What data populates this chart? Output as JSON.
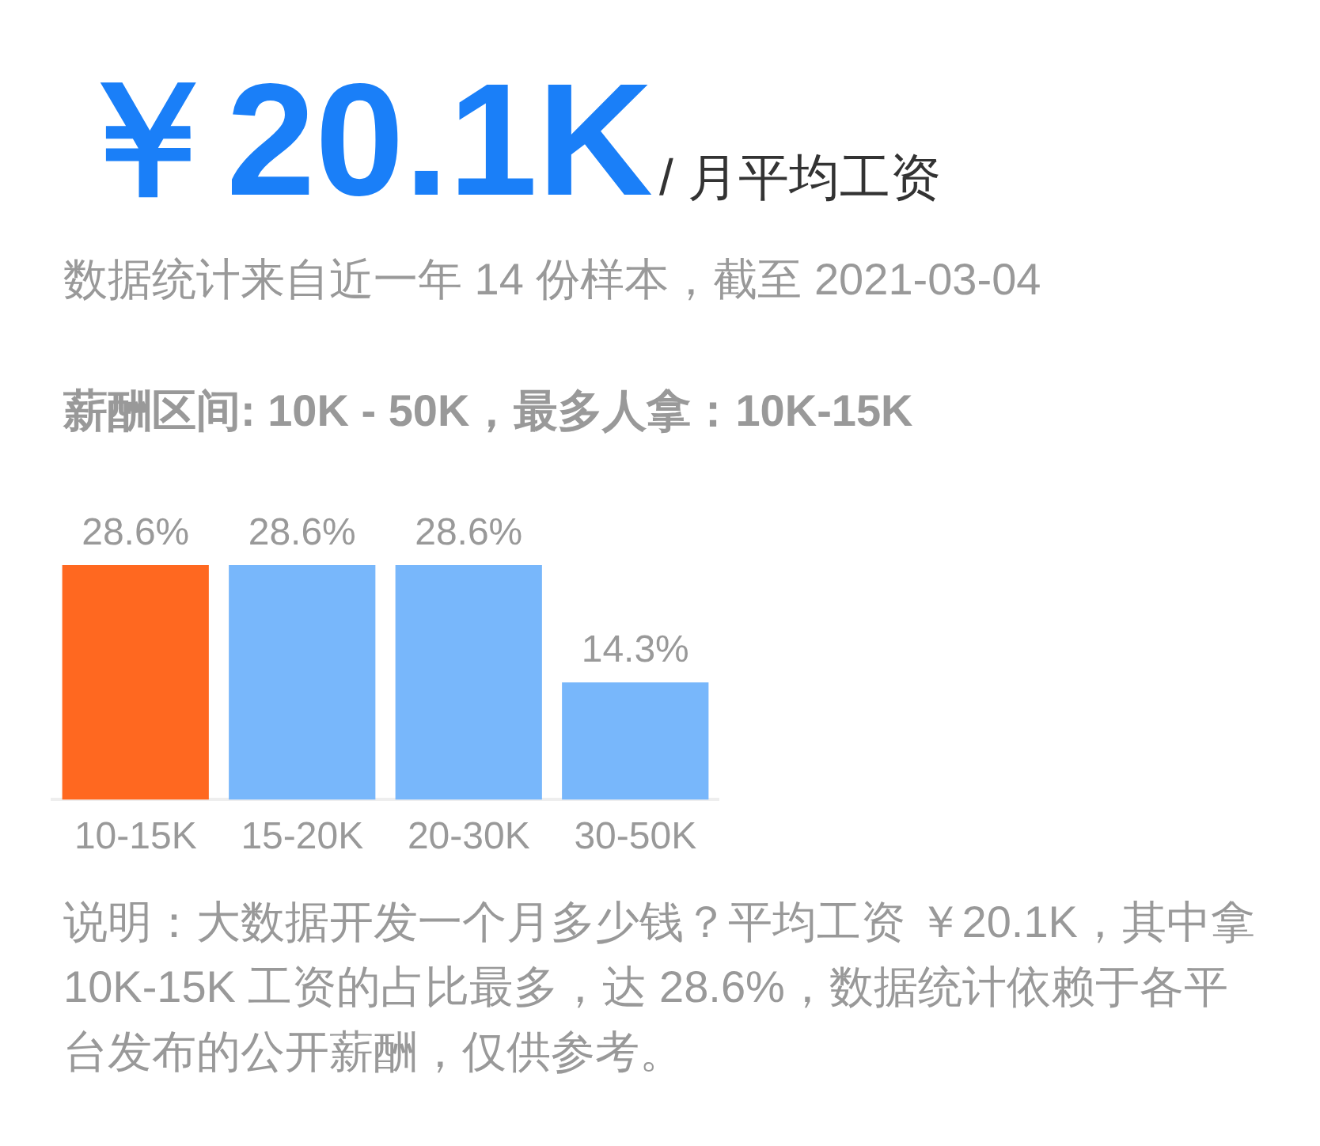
{
  "chart_data": {
    "type": "bar",
    "title": "￥20.1K",
    "subtitle": "/ 月平均工资",
    "annotations": [
      "数据统计来自近一年 14 份样本，截至 2021-03-04",
      "薪酬区间: 10K - 50K，最多人拿：10K-15K",
      "说明：大数据开发一个月多少钱？平均工资 ￥20.1K，其中拿10K-15K 工资的占比最多，达 28.6%，数据统计依赖于各平台发布的公开薪酬，仅供参考。"
    ],
    "categories": [
      "10-15K",
      "15-20K",
      "20-30K",
      "30-50K"
    ],
    "values": [
      28.6,
      28.6,
      28.6,
      14.3
    ],
    "colors": [
      "#ff6820",
      "#78b7fb",
      "#78b7fb",
      "#78b7fb"
    ],
    "value_labels": [
      "28.6%",
      "28.6%",
      "28.6%",
      "14.3%"
    ]
  }
}
